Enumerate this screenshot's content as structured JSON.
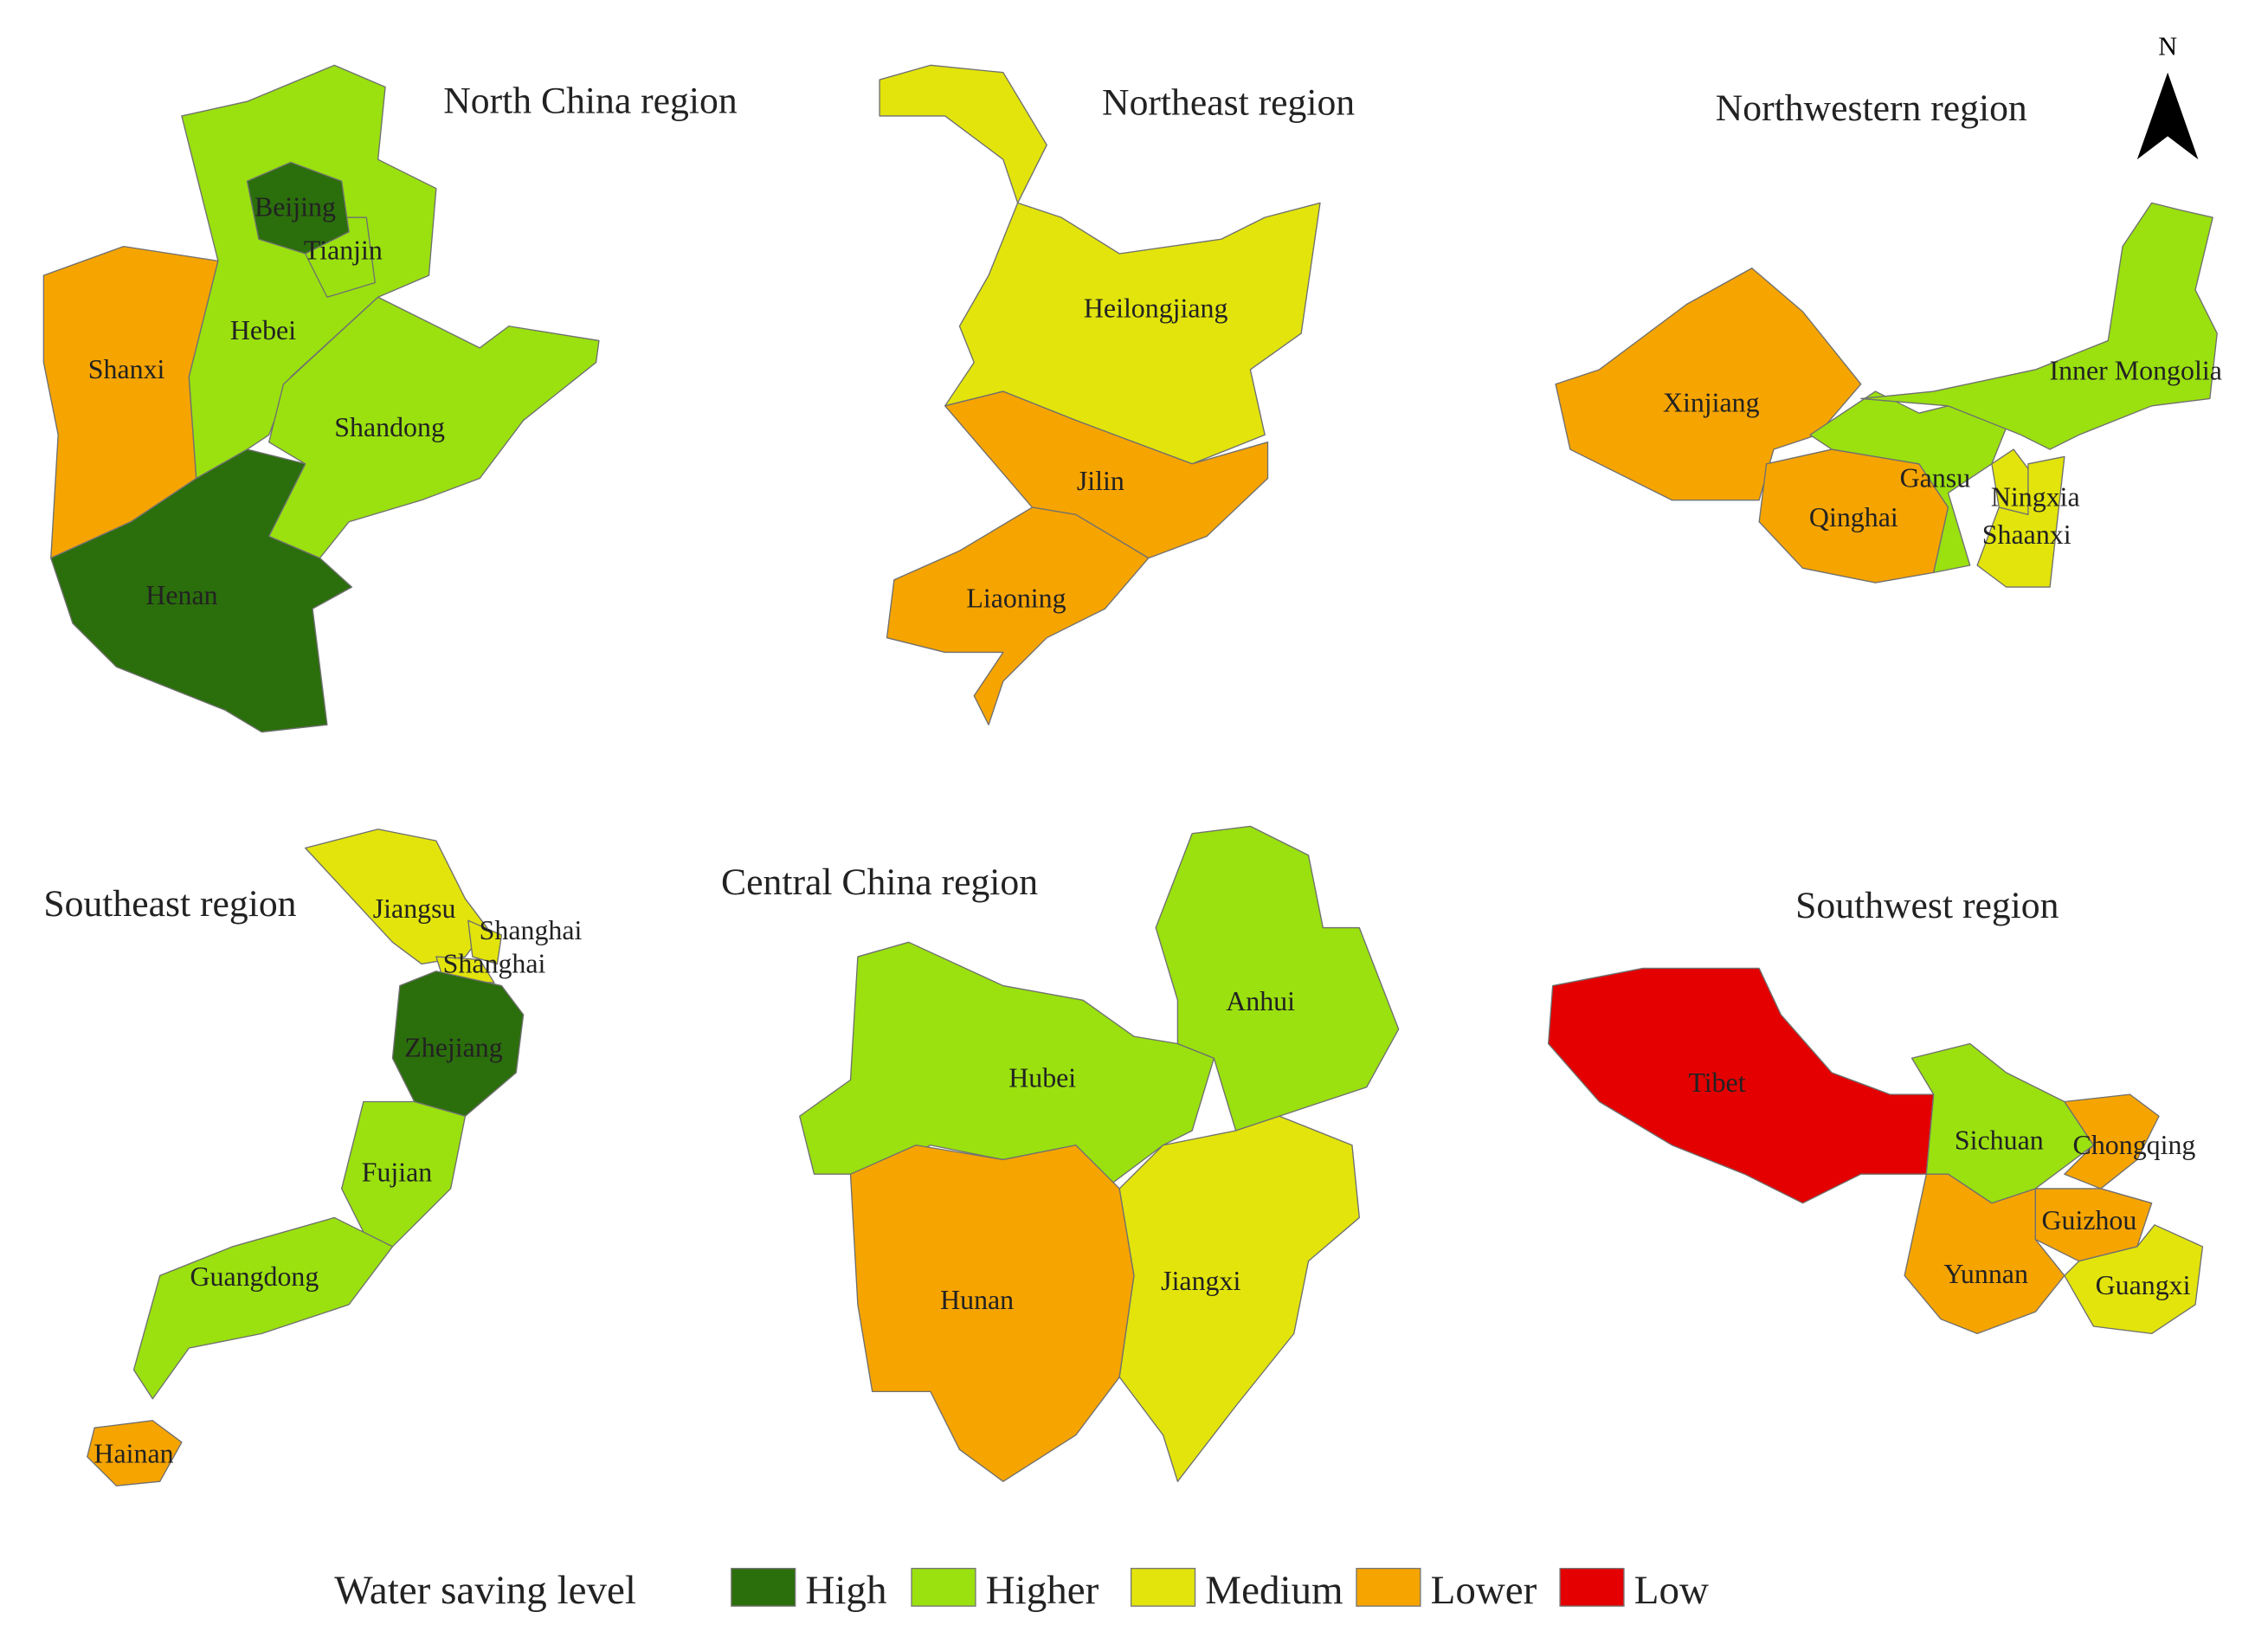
{
  "north_label": "N",
  "regions": [
    {
      "title": "North China region",
      "provinces": [
        {
          "name": "Shanxi",
          "level": "Lower"
        },
        {
          "name": "Hebei",
          "level": "Higher"
        },
        {
          "name": "Shandong",
          "level": "Higher"
        },
        {
          "name": "Henan",
          "level": "High"
        },
        {
          "name": "Tianjin",
          "level": "Higher"
        },
        {
          "name": "Beijing",
          "level": "High"
        }
      ]
    },
    {
      "title": "Northeast region",
      "provinces": [
        {
          "name": "Heilongjiang",
          "level": "Medium"
        },
        {
          "name": "Jilin",
          "level": "Lower"
        },
        {
          "name": "Liaoning",
          "level": "Lower"
        }
      ]
    },
    {
      "title": "Northwestern region",
      "provinces": [
        {
          "name": "Xinjiang",
          "level": "Lower"
        },
        {
          "name": "Qinghai",
          "level": "Lower"
        },
        {
          "name": "Gansu",
          "level": "Higher"
        },
        {
          "name": "Inner Mongolia",
          "level": "Higher"
        },
        {
          "name": "Ningxia",
          "level": "Medium"
        },
        {
          "name": "Shaanxi",
          "level": "Medium"
        }
      ]
    },
    {
      "title": "Southeast region",
      "provinces": [
        {
          "name": "Jiangsu",
          "level": "Medium"
        },
        {
          "name": "Shanghai",
          "level": "Medium"
        },
        {
          "name": "Shanghai",
          "level": "Medium"
        },
        {
          "name": "Zhejiang",
          "level": "High"
        },
        {
          "name": "Fujian",
          "level": "Higher"
        },
        {
          "name": "Guangdong",
          "level": "Higher"
        },
        {
          "name": "Hainan",
          "level": "Lower"
        }
      ]
    },
    {
      "title": "Central China region",
      "provinces": [
        {
          "name": "Hubei",
          "level": "Higher"
        },
        {
          "name": "Anhui",
          "level": "Higher"
        },
        {
          "name": "Hunan",
          "level": "Lower"
        },
        {
          "name": "Jiangxi",
          "level": "Medium"
        }
      ]
    },
    {
      "title": "Southwest region",
      "provinces": [
        {
          "name": "Tibet",
          "level": "Low"
        },
        {
          "name": "Sichuan",
          "level": "Higher"
        },
        {
          "name": "Chongqing",
          "level": "Lower"
        },
        {
          "name": "Guizhou",
          "level": "Lower"
        },
        {
          "name": "Yunnan",
          "level": "Lower"
        },
        {
          "name": "Guangxi",
          "level": "Medium"
        }
      ]
    }
  ],
  "legend": {
    "title": "Water saving level",
    "levels": [
      {
        "label": "High",
        "color": "#2b6e0c"
      },
      {
        "label": "Higher",
        "color": "#9ae10f"
      },
      {
        "label": "Medium",
        "color": "#e2e40c"
      },
      {
        "label": "Lower",
        "color": "#f6a400"
      },
      {
        "label": "Low",
        "color": "#e40000"
      }
    ]
  }
}
